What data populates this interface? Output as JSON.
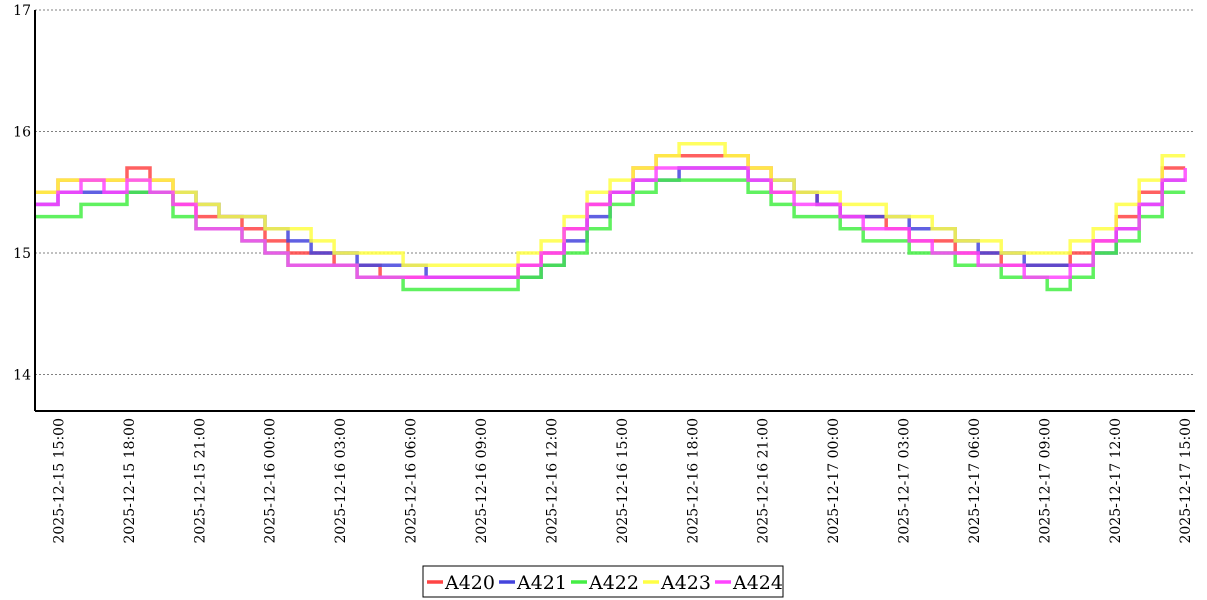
{
  "chart_data": {
    "type": "line",
    "x_start": "2025-12-15 14:00",
    "x_end": "2025-12-17 15:00",
    "xlim": [
      "2025-12-15 14:00",
      "2025-12-17 15:25"
    ],
    "ylim": [
      13.7,
      17
    ],
    "y_ticks": [
      "14",
      "15",
      "16",
      "17"
    ],
    "x_ticks": [
      "2025-12-15 15:00",
      "2025-12-15 18:00",
      "2025-12-15 21:00",
      "2025-12-16 00:00",
      "2025-12-16 03:00",
      "2025-12-16 06:00",
      "2025-12-16 09:00",
      "2025-12-16 12:00",
      "2025-12-16 15:00",
      "2025-12-16 18:00",
      "2025-12-16 21:00",
      "2025-12-17 00:00",
      "2025-12-17 03:00",
      "2025-12-17 06:00",
      "2025-12-17 09:00",
      "2025-12-17 12:00",
      "2025-12-17 15:00"
    ],
    "grid": "horizontal dashed",
    "legend_position": "bottom-center",
    "step": "hourly, stepped lines",
    "series": [
      {
        "name": "A420",
        "color": "#ff4444",
        "values": [
          15.5,
          15.6,
          15.6,
          15.6,
          15.7,
          15.6,
          15.4,
          15.3,
          15.3,
          15.2,
          15.1,
          15.0,
          15.0,
          14.9,
          14.9,
          14.8,
          14.8,
          14.8,
          14.8,
          14.8,
          14.8,
          14.9,
          15.0,
          15.2,
          15.4,
          15.5,
          15.7,
          15.8,
          15.8,
          15.8,
          15.8,
          15.7,
          15.5,
          15.5,
          15.4,
          15.3,
          15.3,
          15.2,
          15.1,
          15.1,
          15.0,
          15.0,
          14.9,
          14.9,
          14.9,
          15.0,
          15.1,
          15.3,
          15.5,
          15.7,
          15.7
        ]
      },
      {
        "name": "A421",
        "color": "#4444dd",
        "values": [
          15.4,
          15.5,
          15.5,
          15.5,
          15.5,
          15.5,
          15.5,
          15.4,
          15.3,
          15.3,
          15.2,
          15.1,
          15.0,
          15.0,
          14.9,
          14.9,
          14.9,
          14.8,
          14.8,
          14.8,
          14.8,
          14.8,
          14.9,
          15.1,
          15.3,
          15.5,
          15.6,
          15.6,
          15.7,
          15.7,
          15.7,
          15.6,
          15.6,
          15.5,
          15.4,
          15.3,
          15.3,
          15.3,
          15.2,
          15.2,
          15.1,
          15.0,
          15.0,
          14.9,
          14.9,
          14.9,
          15.0,
          15.2,
          15.4,
          15.6,
          15.6
        ]
      },
      {
        "name": "A422",
        "color": "#44ee44",
        "values": [
          15.3,
          15.3,
          15.4,
          15.4,
          15.5,
          15.5,
          15.3,
          15.2,
          15.2,
          15.1,
          15.0,
          14.9,
          14.9,
          14.9,
          14.8,
          14.8,
          14.7,
          14.7,
          14.7,
          14.7,
          14.7,
          14.8,
          14.9,
          15.0,
          15.2,
          15.4,
          15.5,
          15.6,
          15.6,
          15.6,
          15.6,
          15.5,
          15.4,
          15.3,
          15.3,
          15.2,
          15.1,
          15.1,
          15.0,
          15.0,
          14.9,
          14.9,
          14.8,
          14.8,
          14.7,
          14.8,
          15.0,
          15.1,
          15.3,
          15.5,
          15.5
        ]
      },
      {
        "name": "A423",
        "color": "#ffff44",
        "values": [
          15.5,
          15.6,
          15.6,
          15.6,
          15.6,
          15.6,
          15.5,
          15.4,
          15.3,
          15.3,
          15.2,
          15.2,
          15.1,
          15.0,
          15.0,
          15.0,
          14.9,
          14.9,
          14.9,
          14.9,
          14.9,
          15.0,
          15.1,
          15.3,
          15.5,
          15.6,
          15.7,
          15.8,
          15.9,
          15.9,
          15.8,
          15.7,
          15.6,
          15.5,
          15.5,
          15.4,
          15.4,
          15.3,
          15.3,
          15.2,
          15.1,
          15.1,
          15.0,
          15.0,
          15.0,
          15.1,
          15.2,
          15.4,
          15.6,
          15.8,
          15.8
        ]
      },
      {
        "name": "A424",
        "color": "#ff44ff",
        "values": [
          15.4,
          15.5,
          15.6,
          15.5,
          15.6,
          15.5,
          15.4,
          15.2,
          15.2,
          15.1,
          15.0,
          14.9,
          14.9,
          14.9,
          14.8,
          14.8,
          14.8,
          14.8,
          14.8,
          14.8,
          14.8,
          14.9,
          15.0,
          15.2,
          15.4,
          15.5,
          15.6,
          15.7,
          15.7,
          15.7,
          15.7,
          15.6,
          15.5,
          15.4,
          15.4,
          15.3,
          15.2,
          15.2,
          15.1,
          15.0,
          15.0,
          14.9,
          14.9,
          14.8,
          14.8,
          14.9,
          15.1,
          15.2,
          15.4,
          15.6,
          15.7
        ]
      }
    ]
  }
}
